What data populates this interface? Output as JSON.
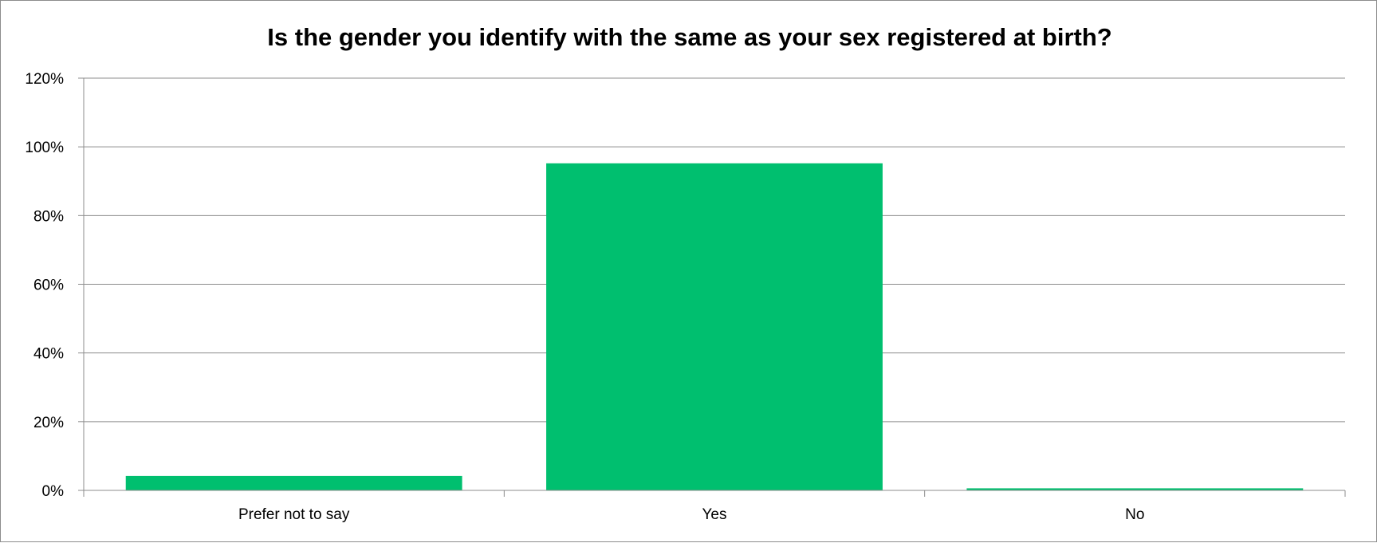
{
  "chart_data": {
    "type": "bar",
    "title": "Is the gender you identify with the same as your sex registered at birth?",
    "xlabel": "",
    "ylabel": "",
    "categories": [
      "Prefer not to say",
      "Yes",
      "No"
    ],
    "values": [
      4.2,
      95.2,
      0.6
    ],
    "ylim": [
      0,
      120
    ],
    "yticks": [
      0,
      20,
      40,
      60,
      80,
      100,
      120
    ],
    "ytick_labels": [
      "0%",
      "20%",
      "40%",
      "60%",
      "80%",
      "100%",
      "120%"
    ],
    "grid": true,
    "legend": "none",
    "bar_color": "#00BF6F",
    "gridline_color": "#8C8C8C"
  }
}
